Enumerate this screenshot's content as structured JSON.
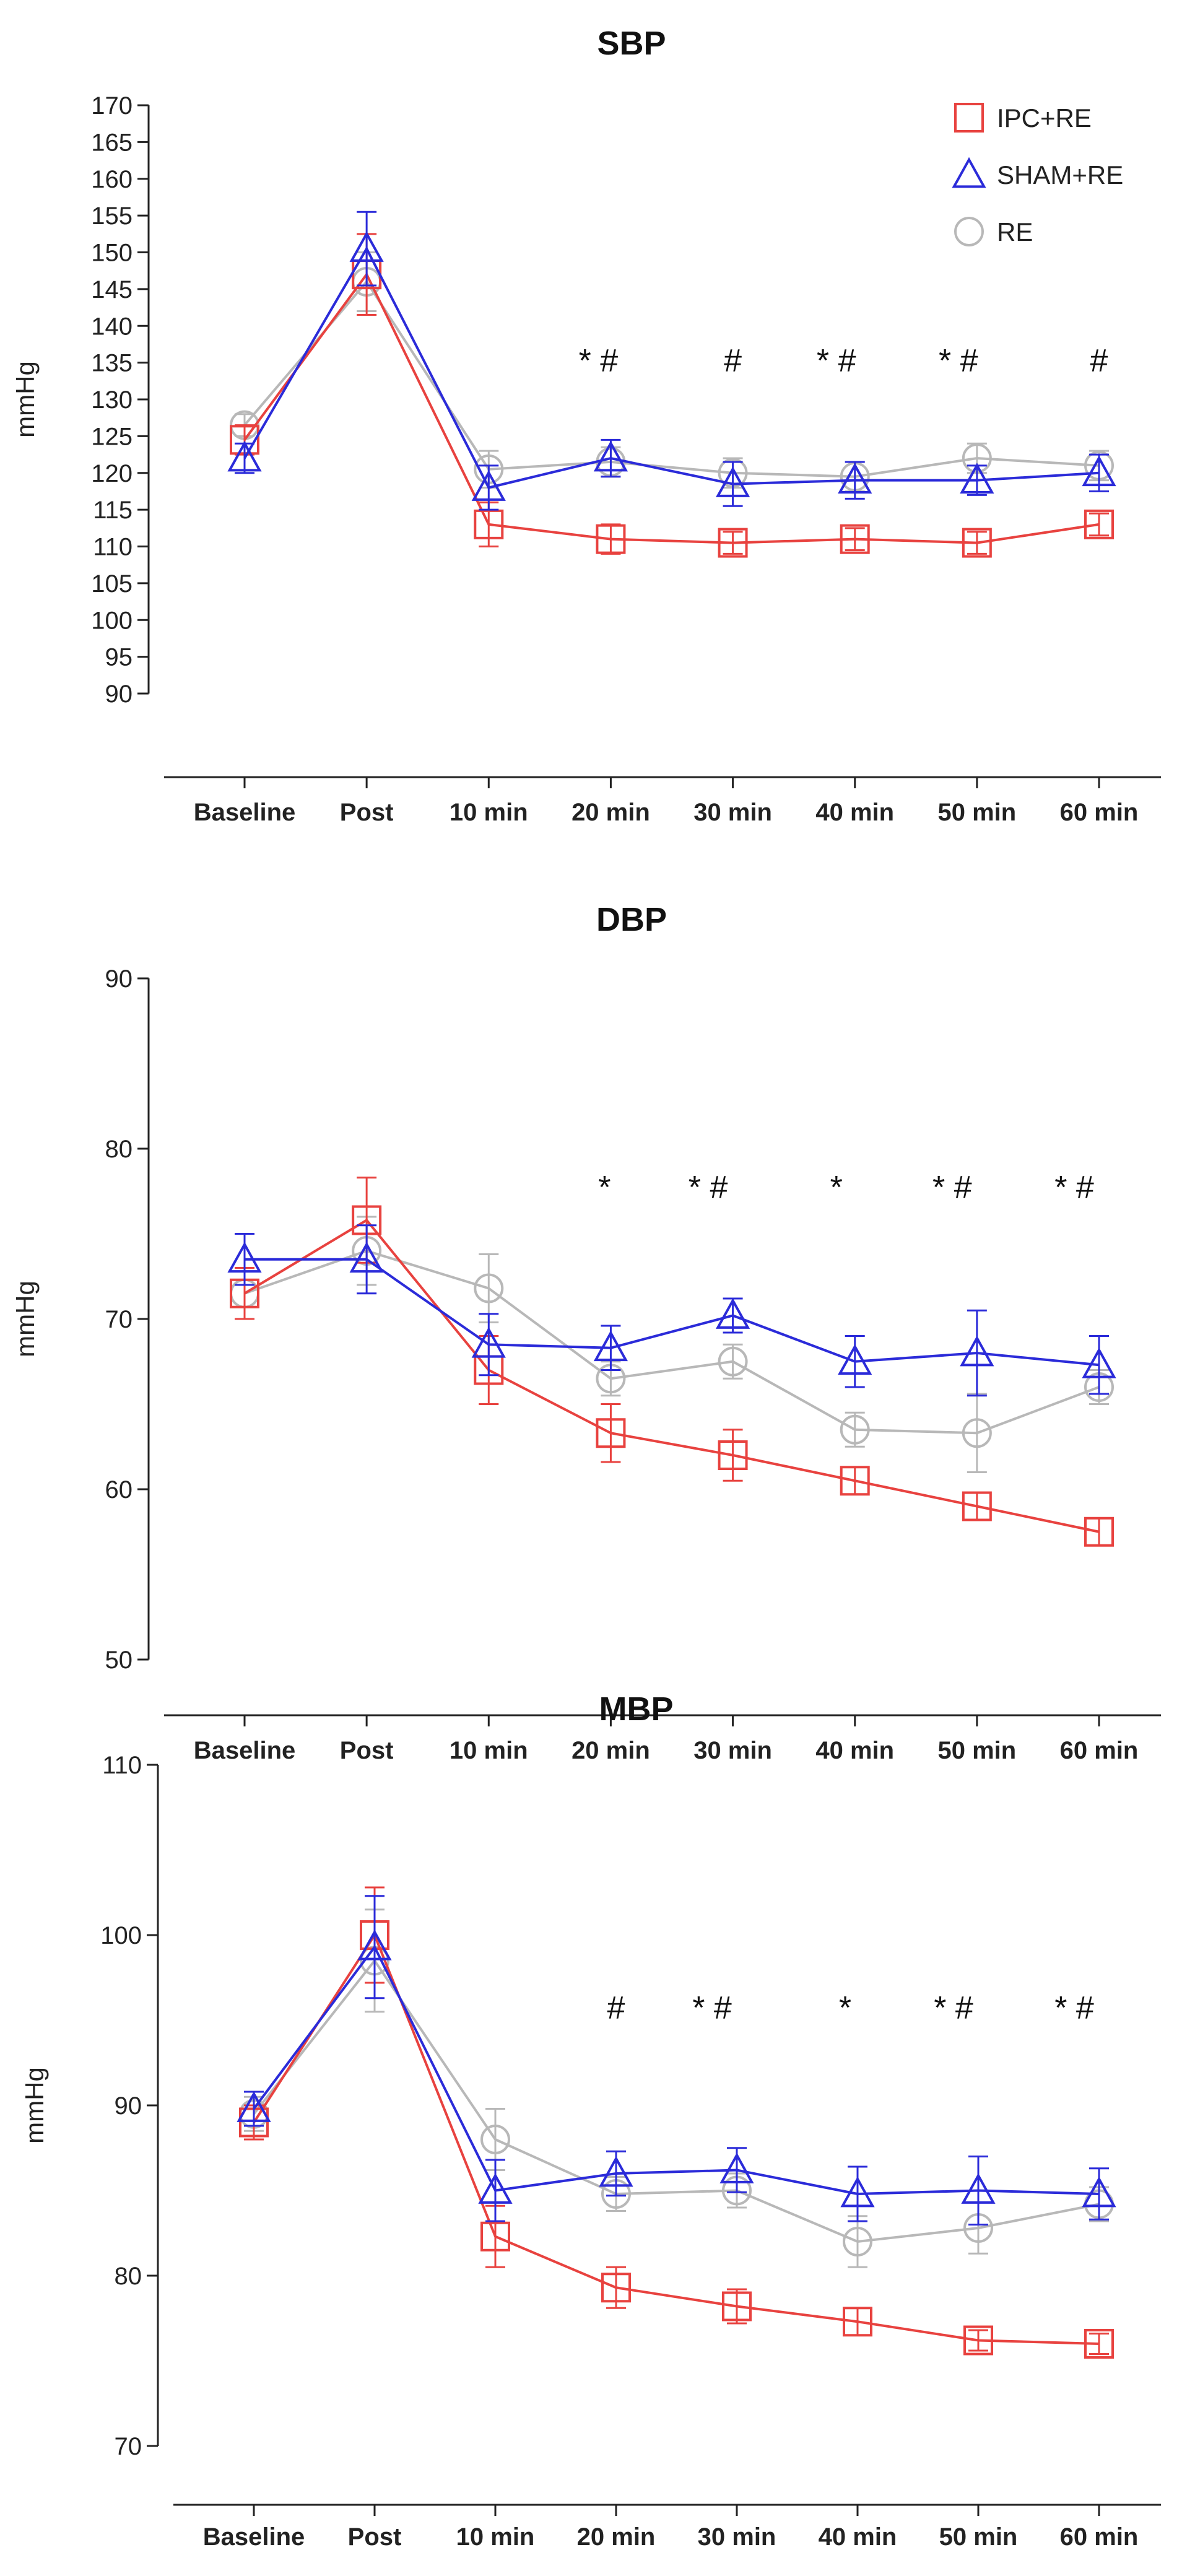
{
  "colors": {
    "IPC+RE": "#e8423f",
    "SHAM+RE": "#2b2bd9",
    "RE": "#b8b8b8",
    "axis": "#222222"
  },
  "chart_data": [
    {
      "type": "line",
      "title": "SBP",
      "ylabel": "mmHg",
      "ylim": [
        90,
        170
      ],
      "yticks": [
        90,
        95,
        100,
        105,
        110,
        115,
        120,
        125,
        130,
        135,
        140,
        145,
        150,
        155,
        160,
        165,
        170
      ],
      "categories": [
        "Baseline",
        "Post",
        "10 min",
        "20 min",
        "30 min",
        "40 min",
        "50 min",
        "60 min"
      ],
      "legend": {
        "position": "top-right",
        "entries": [
          "IPC+RE",
          "SHAM+RE",
          "RE"
        ]
      },
      "significance": [
        "",
        "",
        "",
        "* #",
        "#",
        "* #",
        "* #",
        "#"
      ],
      "series": [
        {
          "name": "RE",
          "marker": "circle",
          "values": [
            126.5,
            146,
            120.5,
            121.5,
            120,
            119.5,
            122,
            121
          ],
          "errors": [
            1.5,
            4,
            2.5,
            2,
            2,
            2,
            2,
            2
          ]
        },
        {
          "name": "IPC+RE",
          "marker": "square",
          "values": [
            124.5,
            147,
            113,
            111,
            110.5,
            111,
            110.5,
            113
          ],
          "errors": [
            2,
            5.5,
            3,
            2,
            1.5,
            1.5,
            1.5,
            1.5
          ]
        },
        {
          "name": "SHAM+RE",
          "marker": "triangle",
          "values": [
            122,
            150.5,
            118,
            122,
            118.5,
            119,
            119,
            120
          ],
          "errors": [
            2,
            5,
            3,
            2.5,
            3,
            2.5,
            2,
            2.5
          ]
        }
      ]
    },
    {
      "type": "line",
      "title": "DBP",
      "ylabel": "mmHg",
      "ylim": [
        50,
        90
      ],
      "yticks": [
        50,
        60,
        70,
        80,
        90
      ],
      "categories": [
        "Baseline",
        "Post",
        "10 min",
        "20 min",
        "30 min",
        "40 min",
        "50 min",
        "60 min"
      ],
      "significance": [
        "",
        "",
        "",
        "*",
        "* #",
        "*",
        "* #",
        "* #"
      ],
      "series": [
        {
          "name": "RE",
          "marker": "circle",
          "values": [
            71.5,
            74,
            71.8,
            66.5,
            67.5,
            63.5,
            63.3,
            66
          ],
          "errors": [
            1.5,
            2,
            2,
            1,
            1,
            1,
            2.3,
            1
          ]
        },
        {
          "name": "IPC+RE",
          "marker": "square",
          "values": [
            71.5,
            75.8,
            67,
            63.3,
            62,
            60.5,
            59,
            57.5
          ],
          "errors": [
            1.5,
            2.5,
            2,
            1.7,
            1.5,
            0.8,
            0.8,
            0.8
          ]
        },
        {
          "name": "SHAM+RE",
          "marker": "triangle",
          "values": [
            73.5,
            73.5,
            68.5,
            68.3,
            70.2,
            67.5,
            68,
            67.3
          ],
          "errors": [
            1.5,
            2,
            1.8,
            1.3,
            1,
            1.5,
            2.5,
            1.7
          ]
        }
      ]
    },
    {
      "type": "line",
      "title": "MBP",
      "ylabel": "mmHg",
      "ylim": [
        70,
        110
      ],
      "yticks": [
        70,
        80,
        90,
        100,
        110
      ],
      "categories": [
        "Baseline",
        "Post",
        "10 min",
        "20 min",
        "30 min",
        "40 min",
        "50 min",
        "60 min"
      ],
      "significance": [
        "",
        "",
        "",
        "#",
        "* #",
        "*",
        "* #",
        "* #"
      ],
      "series": [
        {
          "name": "RE",
          "marker": "circle",
          "values": [
            89.5,
            98.5,
            88,
            84.8,
            85,
            82,
            82.8,
            84.2
          ],
          "errors": [
            1,
            3,
            1.8,
            1,
            1,
            1.5,
            1.5,
            1
          ]
        },
        {
          "name": "IPC+RE",
          "marker": "square",
          "values": [
            89,
            100,
            82.3,
            79.3,
            78.2,
            77.3,
            76.2,
            76
          ],
          "errors": [
            1,
            2.8,
            1.8,
            1.2,
            1,
            0.8,
            0.6,
            0.6
          ]
        },
        {
          "name": "SHAM+RE",
          "marker": "triangle",
          "values": [
            89.8,
            99.3,
            85,
            86,
            86.2,
            84.8,
            85,
            84.8
          ],
          "errors": [
            1,
            3,
            1.8,
            1.3,
            1.3,
            1.6,
            2,
            1.5
          ]
        }
      ]
    }
  ]
}
